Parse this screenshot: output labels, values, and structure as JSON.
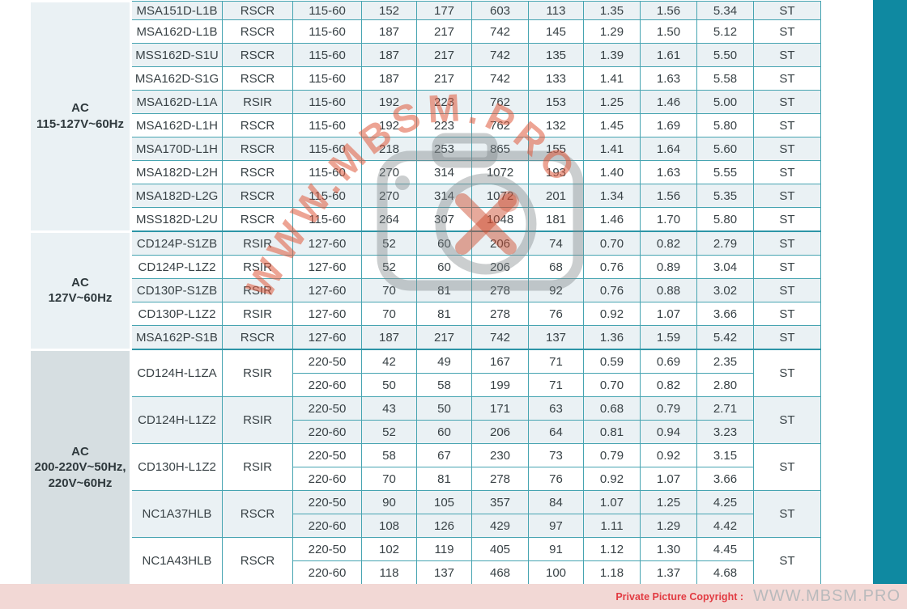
{
  "watermark": {
    "text": "WWW.MBSM.PRO",
    "text_color": "#de5a3c",
    "camera_color": "#7d8488",
    "tools_color": "#cd4b2d"
  },
  "footer": {
    "copyright_label": "Private Picture Copyright :",
    "site_text": "WWW.MBSM.PRO"
  },
  "colors": {
    "row_tint": "#eaf1f4",
    "group_cell_bg": "#d6dee1",
    "grid_teal": "#46a4b1",
    "group_divider_teal": "#2d95a7",
    "table_bottom_teal": "#15839e",
    "side_bar_teal": "#0f89a1",
    "footer_pink": "#f2d8d5",
    "footer_red": "#e23b42",
    "footer_gray": "#b9babc"
  },
  "table": {
    "groups": [
      {
        "label_lines": [
          "AC",
          "115-127V~60Hz"
        ],
        "models": [
          {
            "model": "MSA151D-L1B",
            "type": "RSCR",
            "st": "ST",
            "sub_rows": [
              {
                "vf": "115-60",
                "values": [
                  "152",
                  "177",
                  "603",
                  "113",
                  "1.35",
                  "1.56",
                  "5.34"
                ]
              }
            ]
          },
          {
            "model": "MSA162D-L1B",
            "type": "RSCR",
            "st": "ST",
            "sub_rows": [
              {
                "vf": "115-60",
                "values": [
                  "187",
                  "217",
                  "742",
                  "145",
                  "1.29",
                  "1.50",
                  "5.12"
                ]
              }
            ]
          },
          {
            "model": "MSS162D-S1U",
            "type": "RSCR",
            "st": "ST",
            "sub_rows": [
              {
                "vf": "115-60",
                "values": [
                  "187",
                  "217",
                  "742",
                  "135",
                  "1.39",
                  "1.61",
                  "5.50"
                ]
              }
            ]
          },
          {
            "model": "MSA162D-S1G",
            "type": "RSCR",
            "st": "ST",
            "sub_rows": [
              {
                "vf": "115-60",
                "values": [
                  "187",
                  "217",
                  "742",
                  "133",
                  "1.41",
                  "1.63",
                  "5.58"
                ]
              }
            ]
          },
          {
            "model": "MSA162D-L1A",
            "type": "RSIR",
            "st": "ST",
            "sub_rows": [
              {
                "vf": "115-60",
                "values": [
                  "192",
                  "223",
                  "762",
                  "153",
                  "1.25",
                  "1.46",
                  "5.00"
                ]
              }
            ]
          },
          {
            "model": "MSA162D-L1H",
            "type": "RSCR",
            "st": "ST",
            "sub_rows": [
              {
                "vf": "115-60",
                "values": [
                  "192",
                  "223",
                  "762",
                  "132",
                  "1.45",
                  "1.69",
                  "5.80"
                ]
              }
            ]
          },
          {
            "model": "MSA170D-L1H",
            "type": "RSCR",
            "st": "ST",
            "sub_rows": [
              {
                "vf": "115-60",
                "values": [
                  "218",
                  "253",
                  "865",
                  "155",
                  "1.41",
                  "1.64",
                  "5.60"
                ]
              }
            ]
          },
          {
            "model": "MSA182D-L2H",
            "type": "RSCR",
            "st": "ST",
            "sub_rows": [
              {
                "vf": "115-60",
                "values": [
                  "270",
                  "314",
                  "1072",
                  "193",
                  "1.40",
                  "1.63",
                  "5.55"
                ]
              }
            ]
          },
          {
            "model": "MSA182D-L2G",
            "type": "RSCR",
            "st": "ST",
            "sub_rows": [
              {
                "vf": "115-60",
                "values": [
                  "270",
                  "314",
                  "1072",
                  "201",
                  "1.34",
                  "1.56",
                  "5.35"
                ]
              }
            ]
          },
          {
            "model": "MSS182D-L2U",
            "type": "RSCR",
            "st": "ST",
            "sub_rows": [
              {
                "vf": "115-60",
                "values": [
                  "264",
                  "307",
                  "1048",
                  "181",
                  "1.46",
                  "1.70",
                  "5.80"
                ]
              }
            ]
          }
        ]
      },
      {
        "label_lines": [
          "AC",
          "127V~60Hz"
        ],
        "models": [
          {
            "model": "CD124P-S1ZB",
            "type": "RSIR",
            "st": "ST",
            "sub_rows": [
              {
                "vf": "127-60",
                "values": [
                  "52",
                  "60",
                  "206",
                  "74",
                  "0.70",
                  "0.82",
                  "2.79"
                ]
              }
            ]
          },
          {
            "model": "CD124P-L1Z2",
            "type": "RSIR",
            "st": "ST",
            "sub_rows": [
              {
                "vf": "127-60",
                "values": [
                  "52",
                  "60",
                  "206",
                  "68",
                  "0.76",
                  "0.89",
                  "3.04"
                ]
              }
            ]
          },
          {
            "model": "CD130P-S1ZB",
            "type": "RSIR",
            "st": "ST",
            "sub_rows": [
              {
                "vf": "127-60",
                "values": [
                  "70",
                  "81",
                  "278",
                  "92",
                  "0.76",
                  "0.88",
                  "3.02"
                ]
              }
            ]
          },
          {
            "model": "CD130P-L1Z2",
            "type": "RSIR",
            "st": "ST",
            "sub_rows": [
              {
                "vf": "127-60",
                "values": [
                  "70",
                  "81",
                  "278",
                  "76",
                  "0.92",
                  "1.07",
                  "3.66"
                ]
              }
            ]
          },
          {
            "model": "MSA162P-S1B",
            "type": "RSCR",
            "st": "ST",
            "sub_rows": [
              {
                "vf": "127-60",
                "values": [
                  "187",
                  "217",
                  "742",
                  "137",
                  "1.36",
                  "1.59",
                  "5.42"
                ]
              }
            ]
          }
        ]
      },
      {
        "label_lines": [
          "AC",
          "200-220V~50Hz,",
          "220V~60Hz"
        ],
        "models": [
          {
            "model": "CD124H-L1ZA",
            "type": "RSIR",
            "st": "ST",
            "sub_rows": [
              {
                "vf": "220-50",
                "values": [
                  "42",
                  "49",
                  "167",
                  "71",
                  "0.59",
                  "0.69",
                  "2.35"
                ]
              },
              {
                "vf": "220-60",
                "values": [
                  "50",
                  "58",
                  "199",
                  "71",
                  "0.70",
                  "0.82",
                  "2.80"
                ]
              }
            ]
          },
          {
            "model": "CD124H-L1Z2",
            "type": "RSIR",
            "st": "ST",
            "sub_rows": [
              {
                "vf": "220-50",
                "values": [
                  "43",
                  "50",
                  "171",
                  "63",
                  "0.68",
                  "0.79",
                  "2.71"
                ]
              },
              {
                "vf": "220-60",
                "values": [
                  "52",
                  "60",
                  "206",
                  "64",
                  "0.81",
                  "0.94",
                  "3.23"
                ]
              }
            ]
          },
          {
            "model": "CD130H-L1Z2",
            "type": "RSIR",
            "st": "ST",
            "sub_rows": [
              {
                "vf": "220-50",
                "values": [
                  "58",
                  "67",
                  "230",
                  "73",
                  "0.79",
                  "0.92",
                  "3.15"
                ]
              },
              {
                "vf": "220-60",
                "values": [
                  "70",
                  "81",
                  "278",
                  "76",
                  "0.92",
                  "1.07",
                  "3.66"
                ]
              }
            ]
          },
          {
            "model": "NC1A37HLB",
            "type": "RSCR",
            "st": "ST",
            "sub_rows": [
              {
                "vf": "220-50",
                "values": [
                  "90",
                  "105",
                  "357",
                  "84",
                  "1.07",
                  "1.25",
                  "4.25"
                ]
              },
              {
                "vf": "220-60",
                "values": [
                  "108",
                  "126",
                  "429",
                  "97",
                  "1.11",
                  "1.29",
                  "4.42"
                ]
              }
            ]
          },
          {
            "model": "NC1A43HLB",
            "type": "RSCR",
            "st": "ST",
            "sub_rows": [
              {
                "vf": "220-50",
                "values": [
                  "102",
                  "119",
                  "405",
                  "91",
                  "1.12",
                  "1.30",
                  "4.45"
                ]
              },
              {
                "vf": "220-60",
                "values": [
                  "118",
                  "137",
                  "468",
                  "100",
                  "1.18",
                  "1.37",
                  "4.68"
                ]
              }
            ]
          }
        ]
      }
    ]
  }
}
